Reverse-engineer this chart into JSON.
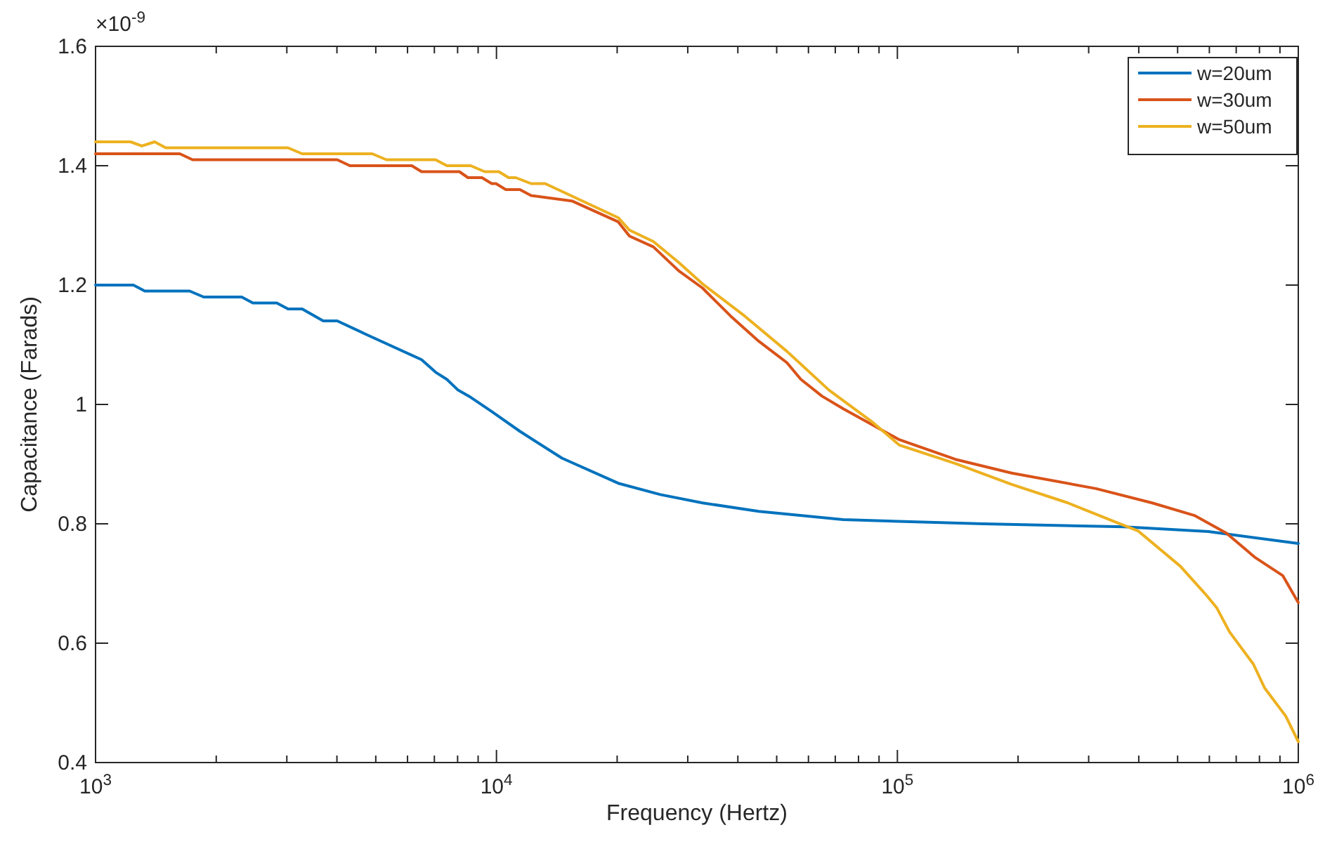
{
  "chart_data": {
    "type": "line",
    "xlabel": "Frequency (Hertz)",
    "ylabel": "Capacitance (Farads)",
    "annotations": [
      "×10$^{-9}$"
    ],
    "log": "x",
    "xlim": [
      1000,
      1000000
    ],
    "ylim": [
      0.4,
      1.6
    ],
    "xticks": [
      {
        "value": 1000,
        "label": "10$^{3}$"
      },
      {
        "value": 2000,
        "label": null
      },
      {
        "value": 3000,
        "label": null
      },
      {
        "value": 4000,
        "label": null
      },
      {
        "value": 5000,
        "label": null
      },
      {
        "value": 6000,
        "label": null
      },
      {
        "value": 7000,
        "label": null
      },
      {
        "value": 8000,
        "label": null
      },
      {
        "value": 9000,
        "label": null
      },
      {
        "value": 10000,
        "label": "10$^{4}$"
      },
      {
        "value": 20000,
        "label": null
      },
      {
        "value": 30000,
        "label": null
      },
      {
        "value": 40000,
        "label": null
      },
      {
        "value": 50000,
        "label": null
      },
      {
        "value": 60000,
        "label": null
      },
      {
        "value": 70000,
        "label": null
      },
      {
        "value": 80000,
        "label": null
      },
      {
        "value": 90000,
        "label": null
      },
      {
        "value": 100000,
        "label": "10$^{5}$"
      },
      {
        "value": 200000,
        "label": null
      },
      {
        "value": 300000,
        "label": null
      },
      {
        "value": 400000,
        "label": null
      },
      {
        "value": 500000,
        "label": null
      },
      {
        "value": 600000,
        "label": null
      },
      {
        "value": 700000,
        "label": null
      },
      {
        "value": 800000,
        "label": null
      },
      {
        "value": 900000,
        "label": null
      },
      {
        "value": 1000000,
        "label": "10$^{6}$"
      }
    ],
    "yticks": [
      0.4,
      0.6,
      0.8,
      1,
      1.2,
      1.4,
      1.6
    ],
    "grid": false,
    "legend": "top right",
    "line_style": "solid",
    "marker": "none",
    "series": [
      {
        "name": "w=20um",
        "color": "#0072bd",
        "x": [
          1000,
          1243,
          1327,
          1717,
          1861,
          2315,
          2469,
          2832,
          3021,
          3276,
          3697,
          4008,
          4709,
          6504,
          7050,
          7520,
          8022,
          8625,
          9734,
          11440,
          14570,
          20120,
          25640,
          32660,
          45100,
          73200,
          164000,
          367700,
          596800,
          1000000
        ],
        "values": [
          1.2,
          1.2,
          1.19,
          1.19,
          1.18,
          1.18,
          1.17,
          1.17,
          1.16,
          1.16,
          1.14,
          1.14,
          1.118,
          1.075,
          1.054,
          1.042,
          1.024,
          1.012,
          0.988,
          0.955,
          0.91,
          0.868,
          0.849,
          0.835,
          0.821,
          0.807,
          0.8,
          0.795,
          0.787,
          0.767
        ]
      },
      {
        "name": "w=30um",
        "color": "#d95319",
        "x": [
          1000,
          1623,
          1746,
          4008,
          4309,
          6149,
          6504,
          8085,
          8490,
          9200,
          9734,
          9973,
          10550,
          11440,
          12200,
          15420,
          20120,
          21470,
          24630,
          28480,
          32660,
          38390,
          45100,
          53020,
          57450,
          64850,
          73200,
          101100,
          139600,
          192800,
          313000,
          432100,
          550600,
          662700,
          778800,
          915200,
          1000000
        ],
        "values": [
          1.42,
          1.42,
          1.41,
          1.41,
          1.4,
          1.4,
          1.39,
          1.39,
          1.38,
          1.38,
          1.37,
          1.37,
          1.36,
          1.36,
          1.35,
          1.341,
          1.306,
          1.282,
          1.264,
          1.224,
          1.195,
          1.148,
          1.106,
          1.07,
          1.042,
          1.014,
          0.993,
          0.941,
          0.908,
          0.885,
          0.859,
          0.835,
          0.814,
          0.784,
          0.744,
          0.713,
          0.668
        ]
      },
      {
        "name": "w=50um",
        "color": "#edb120",
        "x": [
          1000,
          1223,
          1305,
          1404,
          1497,
          3021,
          3276,
          4901,
          5316,
          7050,
          7520,
          8625,
          9350,
          10140,
          10720,
          11170,
          12200,
          13230,
          20120,
          21470,
          24630,
          28480,
          32660,
          41620,
          53020,
          67530,
          86050,
          101100,
          139600,
          192800,
          266400,
          353200,
          398700,
          507800,
          587100,
          626300,
          673600,
          772500,
          824000,
          930000,
          1000000
        ],
        "values": [
          1.44,
          1.44,
          1.433,
          1.44,
          1.43,
          1.43,
          1.42,
          1.42,
          1.41,
          1.41,
          1.4,
          1.4,
          1.39,
          1.39,
          1.38,
          1.38,
          1.37,
          1.37,
          1.313,
          1.292,
          1.273,
          1.238,
          1.202,
          1.148,
          1.089,
          1.024,
          0.972,
          0.932,
          0.901,
          0.866,
          0.835,
          0.802,
          0.788,
          0.729,
          0.682,
          0.659,
          0.619,
          0.565,
          0.525,
          0.478,
          0.435
        ]
      }
    ]
  }
}
